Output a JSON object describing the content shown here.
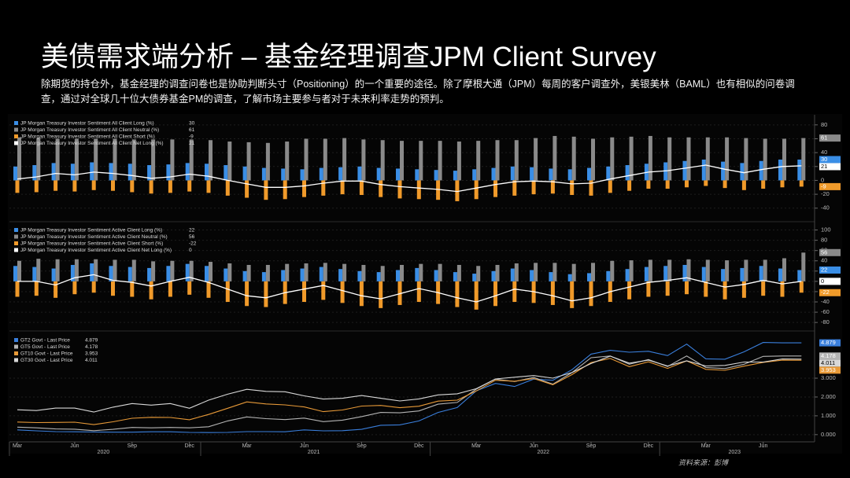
{
  "title": "美债需求端分析 – 基金经理调查JPM Client Survey",
  "subtitle": "除期货的持仓外，基金经理的调查问卷也是协助判断头寸（Positioning）的一个重要的途径。除了摩根大通（JPM）每周的客户调查外，美银美林（BAML）也有相似的问卷调查，通过对全球几十位大债券基金PM的调查，了解市场主要参与者对于未来利率走势的预判。",
  "source": "资料来源：彭博",
  "chart_data": [
    {
      "type": "bar",
      "x": [
        "2020-03",
        "2020-04",
        "2020-05",
        "2020-06",
        "2020-07",
        "2020-08",
        "2020-09",
        "2020-10",
        "2020-11",
        "2020-12",
        "2021-01",
        "2021-02",
        "2021-03",
        "2021-04",
        "2021-05",
        "2021-06",
        "2021-07",
        "2021-08",
        "2021-09",
        "2021-10",
        "2021-11",
        "2021-12",
        "2022-01",
        "2022-02",
        "2022-03",
        "2022-04",
        "2022-05",
        "2022-06",
        "2022-07",
        "2022-08",
        "2022-09",
        "2022-10",
        "2022-11",
        "2022-12",
        "2023-01",
        "2023-02",
        "2023-03",
        "2023-04",
        "2023-05",
        "2023-06",
        "2023-07",
        "2023-08"
      ],
      "ylim": [
        -55,
        90
      ],
      "yticks": [
        -40,
        -20,
        0,
        20,
        40,
        60,
        80
      ],
      "series": [
        {
          "name": "JP Morgan Treasury Investor Sentiment All Client Long (%)",
          "color": "#3a8ee6",
          "style": "bar",
          "values": [
            20,
            22,
            25,
            24,
            26,
            25,
            24,
            22,
            23,
            25,
            24,
            22,
            20,
            18,
            17,
            16,
            18,
            19,
            20,
            18,
            17,
            16,
            15,
            14,
            16,
            18,
            20,
            19,
            17,
            16,
            18,
            20,
            22,
            24,
            26,
            28,
            30,
            27,
            25,
            28,
            30,
            30
          ]
        },
        {
          "name": "JP Morgan Treasury Investor Sentiment All Client Neutral (%)",
          "color": "#8a8a8a",
          "style": "bar",
          "values": [
            62,
            61,
            60,
            60,
            60,
            60,
            59,
            59,
            59,
            59,
            58,
            56,
            55,
            54,
            56,
            60,
            60,
            61,
            59,
            58,
            57,
            57,
            57,
            56,
            57,
            58,
            58,
            61,
            64,
            63,
            60,
            62,
            63,
            64,
            62,
            62,
            62,
            62,
            61,
            60,
            60,
            61
          ]
        },
        {
          "name": "JP Morgan Treasury Investor Sentiment All Client Short (%)",
          "color": "#f09a2a",
          "style": "bar",
          "values": [
            -18,
            -17,
            -15,
            -16,
            -14,
            -15,
            -17,
            -19,
            -18,
            -16,
            -18,
            -22,
            -25,
            -28,
            -27,
            -24,
            -22,
            -20,
            -21,
            -24,
            -26,
            -27,
            -28,
            -30,
            -27,
            -24,
            -22,
            -20,
            -19,
            -21,
            -22,
            -18,
            -15,
            -12,
            -12,
            -10,
            -8,
            -11,
            -14,
            -12,
            -10,
            -9
          ]
        },
        {
          "name": "JP Morgan Treasury Investor Sentiment All Client Net Long (%)",
          "color": "#ffffff",
          "style": "line",
          "values": [
            2,
            5,
            10,
            8,
            12,
            10,
            7,
            3,
            5,
            9,
            6,
            0,
            -5,
            -10,
            -10,
            -8,
            -4,
            -1,
            -1,
            -6,
            -9,
            -11,
            -13,
            -16,
            -11,
            -6,
            -2,
            -1,
            -2,
            -5,
            -4,
            2,
            7,
            12,
            14,
            18,
            22,
            16,
            11,
            16,
            20,
            21
          ]
        }
      ]
    },
    {
      "type": "bar",
      "x": [
        "2020-03",
        "2020-04",
        "2020-05",
        "2020-06",
        "2020-07",
        "2020-08",
        "2020-09",
        "2020-10",
        "2020-11",
        "2020-12",
        "2021-01",
        "2021-02",
        "2021-03",
        "2021-04",
        "2021-05",
        "2021-06",
        "2021-07",
        "2021-08",
        "2021-09",
        "2021-10",
        "2021-11",
        "2021-12",
        "2022-01",
        "2022-02",
        "2022-03",
        "2022-04",
        "2022-05",
        "2022-06",
        "2022-07",
        "2022-08",
        "2022-09",
        "2022-10",
        "2022-11",
        "2022-12",
        "2023-01",
        "2023-02",
        "2023-03",
        "2023-04",
        "2023-05",
        "2023-06",
        "2023-07",
        "2023-08"
      ],
      "ylim": [
        -92,
        110
      ],
      "yticks": [
        -80,
        -60,
        -40,
        -20,
        0,
        20,
        40,
        60,
        80,
        100
      ],
      "series": [
        {
          "name": "JP Morgan Treasury Investor Sentiment Active Client Long (%)",
          "color": "#3a8ee6",
          "style": "bar",
          "values": [
            30,
            28,
            25,
            32,
            35,
            30,
            28,
            26,
            30,
            34,
            30,
            25,
            20,
            18,
            22,
            25,
            28,
            24,
            20,
            18,
            22,
            26,
            22,
            18,
            15,
            20,
            25,
            22,
            18,
            14,
            16,
            20,
            24,
            28,
            30,
            32,
            28,
            24,
            26,
            30,
            25,
            22
          ]
        },
        {
          "name": "JP Morgan Treasury Investor Sentiment Active Client Neutral (%)",
          "color": "#8a8a8a",
          "style": "bar",
          "values": [
            40,
            44,
            43,
            43,
            43,
            42,
            42,
            39,
            40,
            40,
            38,
            35,
            32,
            32,
            34,
            35,
            36,
            34,
            32,
            30,
            32,
            34,
            34,
            32,
            30,
            32,
            35,
            36,
            36,
            34,
            36,
            40,
            41,
            42,
            42,
            43,
            42,
            41,
            42,
            42,
            45,
            56
          ]
        },
        {
          "name": "JP Morgan Treasury Investor Sentiment Active Client Short (%)",
          "color": "#f09a2a",
          "style": "bar",
          "values": [
            -30,
            -28,
            -32,
            -25,
            -22,
            -28,
            -30,
            -35,
            -30,
            -26,
            -32,
            -40,
            -48,
            -50,
            -44,
            -40,
            -36,
            -42,
            -48,
            -52,
            -46,
            -40,
            -44,
            -50,
            -55,
            -48,
            -40,
            -42,
            -46,
            -52,
            -48,
            -40,
            -35,
            -30,
            -28,
            -25,
            -30,
            -35,
            -32,
            -28,
            -30,
            -22
          ]
        },
        {
          "name": "JP Morgan Treasury Investor Sentiment Active Client Net Long (%)",
          "color": "#ffffff",
          "style": "line",
          "values": [
            0,
            0,
            -7,
            7,
            13,
            2,
            -2,
            -9,
            0,
            8,
            -2,
            -15,
            -28,
            -32,
            -22,
            -15,
            -8,
            -18,
            -28,
            -34,
            -24,
            -14,
            -22,
            -32,
            -40,
            -28,
            -15,
            -20,
            -28,
            -38,
            -32,
            -20,
            -11,
            -2,
            2,
            7,
            -2,
            -11,
            -6,
            2,
            -5,
            0
          ]
        }
      ]
    },
    {
      "type": "line",
      "x": [
        "2020-03",
        "2020-04",
        "2020-05",
        "2020-06",
        "2020-07",
        "2020-08",
        "2020-09",
        "2020-10",
        "2020-11",
        "2020-12",
        "2021-01",
        "2021-02",
        "2021-03",
        "2021-04",
        "2021-05",
        "2021-06",
        "2021-07",
        "2021-08",
        "2021-09",
        "2021-10",
        "2021-11",
        "2021-12",
        "2022-01",
        "2022-02",
        "2022-03",
        "2022-04",
        "2022-05",
        "2022-06",
        "2022-07",
        "2022-08",
        "2022-09",
        "2022-10",
        "2022-11",
        "2022-12",
        "2023-01",
        "2023-02",
        "2023-03",
        "2023-04",
        "2023-05",
        "2023-06",
        "2023-07",
        "2023-08"
      ],
      "ylim": [
        -0.3,
        5.3
      ],
      "yticks": [
        {
          "value": 0,
          "label": "0.000"
        },
        {
          "value": 1,
          "label": "1.000"
        },
        {
          "value": 2,
          "label": "2.000"
        },
        {
          "value": 3,
          "label": "3.000"
        }
      ],
      "xticks": [
        {
          "value": "2020-03",
          "label": "Mar"
        },
        {
          "value": "2020-06",
          "label": "Jun"
        },
        {
          "value": "2020-09",
          "label": "Sep"
        },
        {
          "value": "2020-12",
          "label": "Dec"
        },
        {
          "value": "2021-03",
          "label": "Mar"
        },
        {
          "value": "2021-06",
          "label": "Jun"
        },
        {
          "value": "2021-09",
          "label": "Sep"
        },
        {
          "value": "2021-12",
          "label": "Dec"
        },
        {
          "value": "2022-03",
          "label": "Mar"
        },
        {
          "value": "2022-06",
          "label": "Jun"
        },
        {
          "value": "2022-09",
          "label": "Sep"
        },
        {
          "value": "2022-12",
          "label": "Dec"
        },
        {
          "value": "2023-03",
          "label": "Mar"
        },
        {
          "value": "2023-06",
          "label": "Jun"
        }
      ],
      "years": [
        "2020",
        "2021",
        "2022",
        "2023"
      ],
      "series": [
        {
          "name": "GT2 Govt - Last Price",
          "color": "#3a7fdc",
          "values": [
            0.25,
            0.2,
            0.16,
            0.15,
            0.14,
            0.13,
            0.13,
            0.15,
            0.15,
            0.12,
            0.11,
            0.12,
            0.16,
            0.16,
            0.15,
            0.25,
            0.2,
            0.21,
            0.28,
            0.5,
            0.52,
            0.73,
            1.18,
            1.44,
            2.33,
            2.72,
            2.56,
            2.95,
            2.89,
            3.45,
            4.28,
            4.48,
            4.38,
            4.43,
            4.2,
            4.81,
            4.03,
            4.01,
            4.4,
            4.9,
            4.88,
            4.879
          ]
        },
        {
          "name": "GT5 Govt - Last Price",
          "color": "#b4b4b4",
          "values": [
            0.4,
            0.36,
            0.3,
            0.29,
            0.21,
            0.28,
            0.38,
            0.36,
            0.38,
            0.36,
            0.42,
            0.73,
            0.94,
            0.85,
            0.8,
            0.88,
            0.69,
            0.77,
            0.96,
            1.18,
            1.16,
            1.26,
            1.62,
            1.71,
            2.42,
            2.95,
            2.82,
            3.04,
            2.68,
            3.3,
            4.09,
            4.18,
            3.74,
            3.99,
            3.62,
            4.18,
            3.57,
            3.51,
            3.74,
            4.16,
            4.18,
            4.178
          ]
        },
        {
          "name": "GT10 Govt - Last Price",
          "color": "#e89a38",
          "values": [
            0.67,
            0.64,
            0.65,
            0.66,
            0.53,
            0.68,
            0.87,
            0.92,
            0.91,
            0.79,
            1.07,
            1.4,
            1.74,
            1.63,
            1.58,
            1.47,
            1.22,
            1.31,
            1.52,
            1.55,
            1.43,
            1.51,
            1.78,
            1.83,
            2.32,
            2.89,
            2.84,
            2.98,
            2.65,
            3.19,
            3.83,
            4.05,
            3.61,
            3.87,
            3.52,
            3.92,
            3.47,
            3.42,
            3.64,
            3.84,
            3.96,
            3.953
          ]
        },
        {
          "name": "GT30 Govt - Last Price",
          "color": "#d8d8d8",
          "values": [
            1.32,
            1.28,
            1.41,
            1.41,
            1.2,
            1.46,
            1.65,
            1.57,
            1.65,
            1.4,
            1.83,
            2.15,
            2.41,
            2.3,
            2.28,
            2.06,
            1.89,
            1.93,
            2.08,
            1.93,
            1.79,
            1.9,
            2.11,
            2.17,
            2.44,
            2.96,
            3.05,
            3.14,
            3.0,
            3.3,
            3.78,
            4.17,
            3.8,
            3.96,
            3.65,
            3.92,
            3.65,
            3.68,
            3.86,
            3.86,
            4.02,
            4.011
          ]
        }
      ]
    }
  ]
}
